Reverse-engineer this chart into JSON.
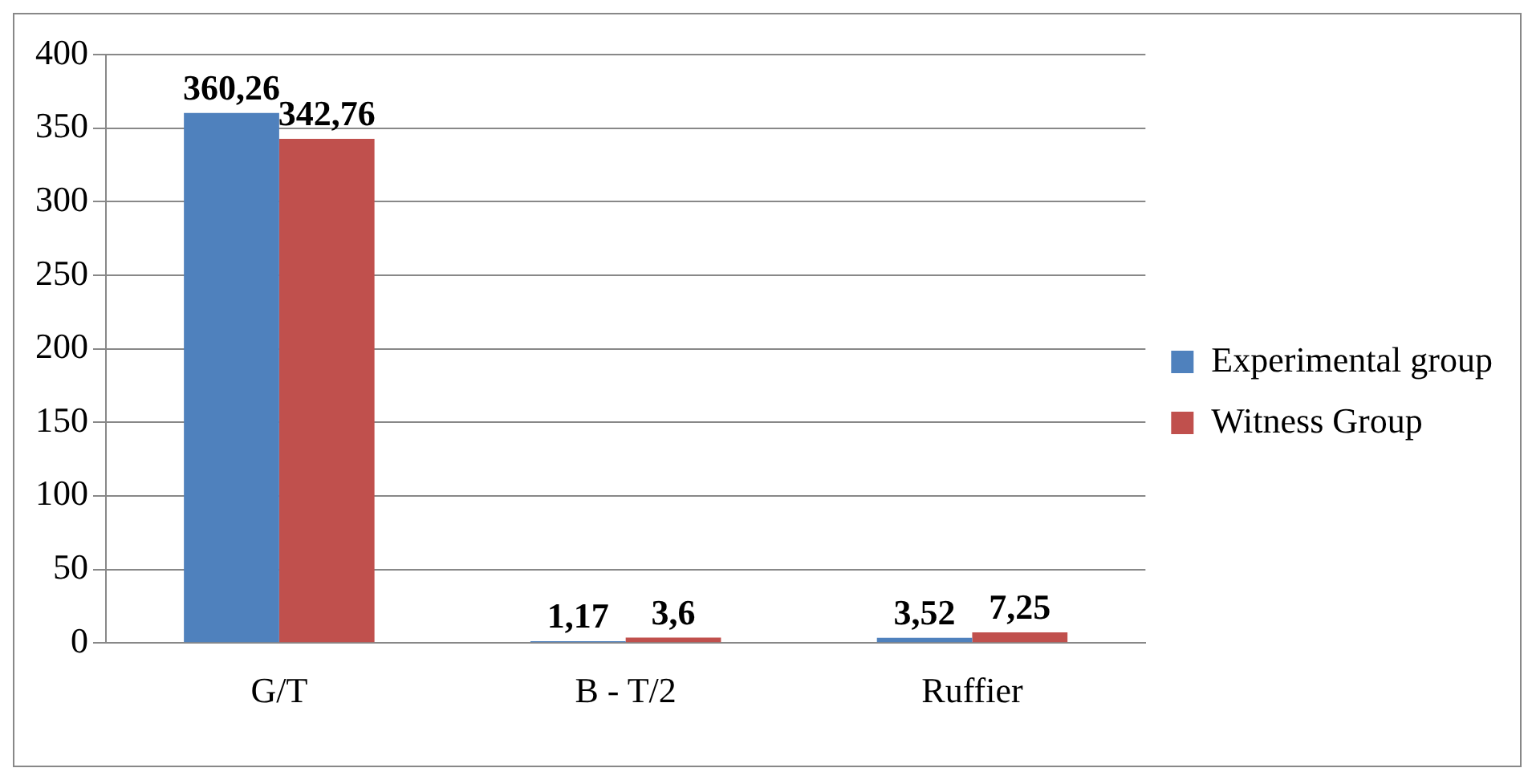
{
  "chart_data": {
    "type": "bar",
    "categories": [
      "G/T",
      "B - T/2",
      "Ruffier"
    ],
    "series": [
      {
        "name": "Experimental group",
        "color": "#4f81bd",
        "values": [
          360.26,
          1.17,
          3.52
        ],
        "value_labels": [
          "360,26",
          "1,17",
          "3,52"
        ]
      },
      {
        "name": "Witness Group",
        "color": "#c0504d",
        "values": [
          342.76,
          3.6,
          7.25
        ],
        "value_labels": [
          "342,76",
          "3,6",
          "7,25"
        ]
      }
    ],
    "ylim": [
      0,
      400
    ],
    "yticks": [
      0,
      50,
      100,
      150,
      200,
      250,
      300,
      350,
      400
    ],
    "grid": "y",
    "legend": "right"
  }
}
